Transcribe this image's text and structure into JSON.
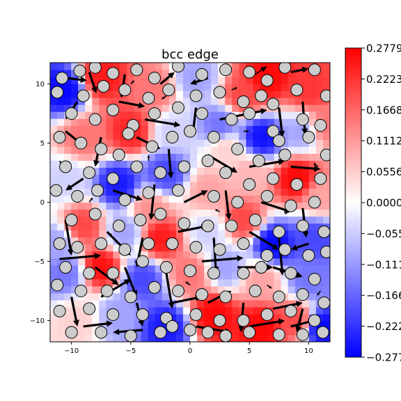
{
  "chart_data": {
    "type": "heatmap",
    "title": "bcc edge",
    "xlabel": "",
    "ylabel": "",
    "xlim": [
      -11.8,
      11.8
    ],
    "ylim": [
      -11.8,
      11.8
    ],
    "x_ticks": [
      -10,
      -5,
      0,
      5,
      10
    ],
    "x_tick_labels": [
      "−10",
      "−5",
      "0",
      "5",
      "10"
    ],
    "y_ticks": [
      -10,
      -5,
      0,
      5,
      10
    ],
    "y_tick_labels": [
      "−10",
      "−5",
      "0",
      "5",
      "10"
    ],
    "colormap": "bwr",
    "colorbar": {
      "vmin": -0.2779,
      "vmax": 0.2779,
      "ticks": [
        0.2779,
        0.2223,
        0.1668,
        0.1112,
        0.0556,
        0.0,
        -0.0556,
        -0.1112,
        -0.1668,
        -0.2223,
        -0.2779
      ],
      "tick_labels": [
        "0.2779",
        "0.2223",
        "0.1668",
        "0.1112",
        "0.0556",
        "0.0000",
        "−0.0556",
        "−0.1112",
        "−0.1668",
        "−0.2223",
        "−0.2779"
      ]
    },
    "color_low": "#0000ff",
    "color_mid": "#ffffff",
    "color_high": "#ff0000",
    "atom_fill": "#cccccc",
    "atom_stroke": "#000000",
    "arrow_color": "#000000",
    "grid": false,
    "field_samples": [
      {
        "x": -10.5,
        "y": 9.5,
        "v": -0.27
      },
      {
        "x": -7.5,
        "y": 10.5,
        "v": 0.25
      },
      {
        "x": -3.0,
        "y": 9.5,
        "v": 0.15
      },
      {
        "x": 0.5,
        "y": 10.5,
        "v": -0.1
      },
      {
        "x": 4.5,
        "y": 9.0,
        "v": 0.2
      },
      {
        "x": 6.5,
        "y": 10.5,
        "v": 0.27
      },
      {
        "x": 10.0,
        "y": 9.5,
        "v": 0.22
      },
      {
        "x": -9.0,
        "y": 5.5,
        "v": 0.15
      },
      {
        "x": -5.0,
        "y": 6.0,
        "v": 0.24
      },
      {
        "x": -1.5,
        "y": 6.0,
        "v": -0.05
      },
      {
        "x": 2.5,
        "y": 6.5,
        "v": -0.15
      },
      {
        "x": 6.0,
        "y": 5.5,
        "v": -0.26
      },
      {
        "x": 9.5,
        "y": 6.0,
        "v": -0.1
      },
      {
        "x": -10.5,
        "y": 2.0,
        "v": -0.05
      },
      {
        "x": -6.0,
        "y": 1.5,
        "v": -0.25
      },
      {
        "x": -2.0,
        "y": 2.5,
        "v": -0.2
      },
      {
        "x": 1.5,
        "y": 1.0,
        "v": 0.1
      },
      {
        "x": 5.0,
        "y": 2.5,
        "v": 0.08
      },
      {
        "x": 9.0,
        "y": 2.0,
        "v": 0.27
      },
      {
        "x": 11.0,
        "y": 0.5,
        "v": 0.1
      },
      {
        "x": -9.0,
        "y": -2.0,
        "v": 0.2
      },
      {
        "x": -5.5,
        "y": -2.5,
        "v": -0.1
      },
      {
        "x": -2.5,
        "y": -3.0,
        "v": 0.25
      },
      {
        "x": 1.5,
        "y": -2.5,
        "v": -0.05
      },
      {
        "x": 4.5,
        "y": -1.5,
        "v": 0.2
      },
      {
        "x": 7.0,
        "y": -3.5,
        "v": -0.27
      },
      {
        "x": 10.5,
        "y": -3.0,
        "v": -0.2
      },
      {
        "x": -10.5,
        "y": -6.0,
        "v": -0.15
      },
      {
        "x": -7.5,
        "y": -5.5,
        "v": 0.26
      },
      {
        "x": -4.0,
        "y": -6.5,
        "v": -0.2
      },
      {
        "x": 0.0,
        "y": -6.0,
        "v": 0.15
      },
      {
        "x": 3.0,
        "y": -5.5,
        "v": -0.1
      },
      {
        "x": 6.0,
        "y": -6.5,
        "v": 0.1
      },
      {
        "x": 10.0,
        "y": -6.5,
        "v": -0.15
      },
      {
        "x": -9.5,
        "y": -10.0,
        "v": 0.05
      },
      {
        "x": -6.0,
        "y": -9.5,
        "v": -0.1
      },
      {
        "x": -2.0,
        "y": -10.5,
        "v": -0.25
      },
      {
        "x": 2.0,
        "y": -9.5,
        "v": 0.27
      },
      {
        "x": 6.0,
        "y": -10.5,
        "v": 0.27
      },
      {
        "x": 9.0,
        "y": -10.0,
        "v": 0.2
      },
      {
        "x": 11.0,
        "y": -10.5,
        "v": -0.27
      },
      {
        "x": -11.2,
        "y": -3.5,
        "v": -0.1
      },
      {
        "x": 11.2,
        "y": 6.5,
        "v": 0.15
      },
      {
        "x": -3.5,
        "y": -0.5,
        "v": 0.12
      },
      {
        "x": 3.0,
        "y": 4.5,
        "v": 0.05
      }
    ],
    "atoms": [
      [
        -10.8,
        10.5
      ],
      [
        -9.3,
        11.1
      ],
      [
        -8.0,
        11.4
      ],
      [
        -6.5,
        10.9
      ],
      [
        -4.5,
        11.2
      ],
      [
        -3.0,
        10.5
      ],
      [
        -1.0,
        11.5
      ],
      [
        1.0,
        10.8
      ],
      [
        3.0,
        11.2
      ],
      [
        5.0,
        11.0
      ],
      [
        6.5,
        10.3
      ],
      [
        8.0,
        11.4
      ],
      [
        10.5,
        11.2
      ],
      [
        -11.2,
        9.3
      ],
      [
        -9.0,
        9.0
      ],
      [
        -7.3,
        9.8
      ],
      [
        -5.5,
        9.5
      ],
      [
        -3.5,
        8.8
      ],
      [
        -1.8,
        9.5
      ],
      [
        0.5,
        9.0
      ],
      [
        2.5,
        9.3
      ],
      [
        4.5,
        8.5
      ],
      [
        6.0,
        9.0
      ],
      [
        7.0,
        8.3
      ],
      [
        9.0,
        9.5
      ],
      [
        11.5,
        9.0
      ],
      [
        -10.0,
        7.5
      ],
      [
        -8.0,
        7.0
      ],
      [
        -6.5,
        7.8
      ],
      [
        -4.8,
        6.5
      ],
      [
        -3.0,
        7.5
      ],
      [
        -1.0,
        8.0
      ],
      [
        1.0,
        7.5
      ],
      [
        3.5,
        7.0
      ],
      [
        5.0,
        7.5
      ],
      [
        7.0,
        6.0
      ],
      [
        9.5,
        7.0
      ],
      [
        11.0,
        6.5
      ],
      [
        -11.0,
        5.5
      ],
      [
        -9.2,
        5.0
      ],
      [
        -7.5,
        4.5
      ],
      [
        -5.2,
        5.8
      ],
      [
        -3.2,
        4.7
      ],
      [
        -1.5,
        5.5
      ],
      [
        0.0,
        6.0
      ],
      [
        2.0,
        5.5
      ],
      [
        4.0,
        4.5
      ],
      [
        5.8,
        3.5
      ],
      [
        8.0,
        4.0
      ],
      [
        10.0,
        5.5
      ],
      [
        11.5,
        4.0
      ],
      [
        -10.5,
        3.0
      ],
      [
        -8.5,
        2.5
      ],
      [
        -6.5,
        2.0
      ],
      [
        -4.5,
        3.0
      ],
      [
        -2.5,
        2.5
      ],
      [
        -0.5,
        3.0
      ],
      [
        1.5,
        3.5
      ],
      [
        3.0,
        2.5
      ],
      [
        5.0,
        1.5
      ],
      [
        7.0,
        2.0
      ],
      [
        9.0,
        1.5
      ],
      [
        11.0,
        2.0
      ],
      [
        -11.3,
        1.0
      ],
      [
        -9.5,
        0.5
      ],
      [
        -7.8,
        1.0
      ],
      [
        -5.5,
        0.2
      ],
      [
        -3.5,
        0.8
      ],
      [
        -1.0,
        1.0
      ],
      [
        2.0,
        0.5
      ],
      [
        4.0,
        0.0
      ],
      [
        6.5,
        0.5
      ],
      [
        8.5,
        -0.3
      ],
      [
        10.5,
        0.0
      ],
      [
        -10.0,
        -1.5
      ],
      [
        -8.0,
        -1.0
      ],
      [
        -6.0,
        -2.0
      ],
      [
        -4.2,
        -1.5
      ],
      [
        -2.5,
        -1.0
      ],
      [
        -0.5,
        -1.8
      ],
      [
        1.5,
        -2.0
      ],
      [
        3.5,
        -2.0
      ],
      [
        5.5,
        -1.5
      ],
      [
        7.5,
        -2.5
      ],
      [
        9.5,
        -2.0
      ],
      [
        11.3,
        -2.5
      ],
      [
        -11.0,
        -3.5
      ],
      [
        -9.5,
        -3.8
      ],
      [
        -7.5,
        -3.5
      ],
      [
        -5.5,
        -4.0
      ],
      [
        -3.5,
        -3.5
      ],
      [
        -1.5,
        -3.5
      ],
      [
        0.5,
        -3.8
      ],
      [
        2.5,
        -4.0
      ],
      [
        4.5,
        -3.5
      ],
      [
        6.5,
        -4.5
      ],
      [
        8.0,
        -4.0
      ],
      [
        10.0,
        -4.5
      ],
      [
        11.5,
        -4.2
      ],
      [
        -10.5,
        -5.5
      ],
      [
        -8.5,
        -6.0
      ],
      [
        -6.5,
        -6.0
      ],
      [
        -4.0,
        -5.0
      ],
      [
        -2.0,
        -5.5
      ],
      [
        0.0,
        -5.8
      ],
      [
        2.0,
        -6.0
      ],
      [
        4.5,
        -6.0
      ],
      [
        6.0,
        -5.5
      ],
      [
        8.5,
        -6.0
      ],
      [
        10.5,
        -6.5
      ],
      [
        -11.2,
        -7.0
      ],
      [
        -9.2,
        -7.5
      ],
      [
        -7.0,
        -7.5
      ],
      [
        -5.0,
        -8.0
      ],
      [
        -3.0,
        -7.2
      ],
      [
        -1.0,
        -7.5
      ],
      [
        1.0,
        -7.8
      ],
      [
        3.0,
        -8.0
      ],
      [
        5.5,
        -7.5
      ],
      [
        7.5,
        -8.0
      ],
      [
        9.5,
        -7.8
      ],
      [
        11.3,
        -8.5
      ],
      [
        -11.0,
        -9.2
      ],
      [
        -8.5,
        -9.0
      ],
      [
        -6.5,
        -9.5
      ],
      [
        -4.0,
        -9.5
      ],
      [
        -2.0,
        -9.8
      ],
      [
        0.5,
        -9.5
      ],
      [
        2.5,
        -10.0
      ],
      [
        4.5,
        -10.0
      ],
      [
        6.5,
        -9.5
      ],
      [
        8.5,
        -9.2
      ],
      [
        10.5,
        -10.0
      ],
      [
        -10.0,
        -11.0
      ],
      [
        -7.5,
        -11.0
      ],
      [
        -5.0,
        -11.3
      ],
      [
        -2.5,
        -11.0
      ],
      [
        0.0,
        -10.8
      ],
      [
        3.0,
        -11.3
      ],
      [
        5.0,
        -11.0
      ],
      [
        7.5,
        -11.2
      ],
      [
        9.5,
        -11.2
      ],
      [
        11.2,
        -11.0
      ],
      [
        -1.5,
        -10.5
      ],
      [
        1.5,
        -11.0
      ],
      [
        -6.0,
        4.0
      ],
      [
        7.5,
        5.2
      ]
    ],
    "arrows": [
      {
        "x": -10.5,
        "y": 10.5,
        "dx": 1.8,
        "dy": -0.2
      },
      {
        "x": -8.5,
        "y": 11.0,
        "dx": 0.6,
        "dy": -1.8
      },
      {
        "x": -5.5,
        "y": 10.8,
        "dx": -0.3,
        "dy": -2.0
      },
      {
        "x": -2.5,
        "y": 10.0,
        "dx": 1.2,
        "dy": 1.0
      },
      {
        "x": 1.5,
        "y": 10.5,
        "dx": -1.5,
        "dy": -0.5
      },
      {
        "x": 5.5,
        "y": 10.8,
        "dx": 1.0,
        "dy": 0.7
      },
      {
        "x": 8.5,
        "y": 11.0,
        "dx": 1.5,
        "dy": 0.3
      },
      {
        "x": -9.5,
        "y": 8.5,
        "dx": -1.0,
        "dy": -1.5
      },
      {
        "x": -6.0,
        "y": 8.5,
        "dx": 2.2,
        "dy": -0.4
      },
      {
        "x": -3.8,
        "y": 7.0,
        "dx": 3.0,
        "dy": -0.5
      },
      {
        "x": 0.5,
        "y": 8.0,
        "dx": -0.3,
        "dy": -2.5
      },
      {
        "x": 2.5,
        "y": 7.0,
        "dx": 4.0,
        "dy": 0.8
      },
      {
        "x": 7.5,
        "y": 8.0,
        "dx": 0.3,
        "dy": -2.5
      },
      {
        "x": 9.5,
        "y": 8.5,
        "dx": 0.2,
        "dy": -2.8
      },
      {
        "x": -10.5,
        "y": 6.0,
        "dx": 1.5,
        "dy": -1.2
      },
      {
        "x": -7.5,
        "y": 5.5,
        "dx": -0.5,
        "dy": -2.5
      },
      {
        "x": -4.5,
        "y": 5.5,
        "dx": 2.0,
        "dy": -1.0
      },
      {
        "x": -1.8,
        "y": 4.5,
        "dx": 0.2,
        "dy": -2.5
      },
      {
        "x": 1.5,
        "y": 4.0,
        "dx": 2.5,
        "dy": -1.5
      },
      {
        "x": 5.0,
        "y": 3.0,
        "dx": 3.0,
        "dy": 0.5
      },
      {
        "x": 8.5,
        "y": 3.0,
        "dx": 2.5,
        "dy": -0.2
      },
      {
        "x": -9.0,
        "y": 2.0,
        "dx": -1.5,
        "dy": -1.0
      },
      {
        "x": -6.5,
        "y": 1.0,
        "dx": 2.5,
        "dy": -0.8
      },
      {
        "x": -3.0,
        "y": 1.5,
        "dx": -0.3,
        "dy": -3.0
      },
      {
        "x": -0.5,
        "y": 0.0,
        "dx": 2.0,
        "dy": 1.0
      },
      {
        "x": 3.0,
        "y": 1.0,
        "dx": 0.3,
        "dy": -2.5
      },
      {
        "x": 6.0,
        "y": 0.0,
        "dx": 2.5,
        "dy": -0.8
      },
      {
        "x": 9.5,
        "y": -0.5,
        "dx": 0.3,
        "dy": -2.5
      },
      {
        "x": -10.5,
        "y": -1.5,
        "dx": 0.5,
        "dy": -3.0
      },
      {
        "x": -7.0,
        "y": -2.5,
        "dx": 2.0,
        "dy": -2.0
      },
      {
        "x": -4.0,
        "y": -3.0,
        "dx": -0.5,
        "dy": -2.5
      },
      {
        "x": -1.0,
        "y": -2.5,
        "dx": 2.5,
        "dy": 0.5
      },
      {
        "x": 2.0,
        "y": -3.0,
        "dx": 0.2,
        "dy": -3.0
      },
      {
        "x": 5.0,
        "y": -2.5,
        "dx": 2.5,
        "dy": -1.5
      },
      {
        "x": 7.5,
        "y": -3.0,
        "dx": 0.3,
        "dy": -3.2
      },
      {
        "x": 10.0,
        "y": -3.5,
        "dx": -1.5,
        "dy": -0.5
      },
      {
        "x": -11.0,
        "y": -4.8,
        "dx": 3.5,
        "dy": 0.3
      },
      {
        "x": -8.0,
        "y": -5.5,
        "dx": 2.0,
        "dy": -1.5
      },
      {
        "x": -5.5,
        "y": -5.5,
        "dx": 1.0,
        "dy": -2.5
      },
      {
        "x": -2.0,
        "y": -6.0,
        "dx": 0.5,
        "dy": -3.0
      },
      {
        "x": 1.0,
        "y": -5.0,
        "dx": 3.5,
        "dy": 0.3
      },
      {
        "x": 4.0,
        "y": -5.5,
        "dx": 3.0,
        "dy": 0.0
      },
      {
        "x": 7.0,
        "y": -5.5,
        "dx": 2.5,
        "dy": -0.8
      },
      {
        "x": -10.0,
        "y": -8.0,
        "dx": 0.5,
        "dy": -2.5
      },
      {
        "x": -7.5,
        "y": -8.0,
        "dx": 2.5,
        "dy": 1.5
      },
      {
        "x": -4.5,
        "y": -8.5,
        "dx": 0.5,
        "dy": -2.0
      },
      {
        "x": -1.5,
        "y": -8.5,
        "dx": 2.5,
        "dy": 0.5
      },
      {
        "x": 1.5,
        "y": -8.5,
        "dx": 2.0,
        "dy": 1.0
      },
      {
        "x": 4.5,
        "y": -8.5,
        "dx": -0.2,
        "dy": -2.5
      },
      {
        "x": 7.0,
        "y": -9.0,
        "dx": 2.5,
        "dy": 0.5
      },
      {
        "x": 9.5,
        "y": -9.0,
        "dx": -0.5,
        "dy": -2.0
      },
      {
        "x": -9.0,
        "y": -10.5,
        "dx": 2.5,
        "dy": 0.3
      },
      {
        "x": -4.0,
        "y": -10.8,
        "dx": -2.5,
        "dy": -0.2
      },
      {
        "x": 0.5,
        "y": -10.5,
        "dx": 3.0,
        "dy": -0.5
      },
      {
        "x": 5.0,
        "y": -10.5,
        "dx": 3.0,
        "dy": 0.5
      },
      {
        "x": 8.5,
        "y": -10.5,
        "dx": 2.0,
        "dy": 0.5
      },
      {
        "x": -11.0,
        "y": 3.5,
        "dx": 0.3,
        "dy": -0.6
      },
      {
        "x": -2.0,
        "y": 9.0,
        "dx": -0.4,
        "dy": -0.3
      },
      {
        "x": 3.5,
        "y": 9.5,
        "dx": 0.5,
        "dy": 0.2
      },
      {
        "x": 10.8,
        "y": 3.0,
        "dx": -0.4,
        "dy": 0.3
      },
      {
        "x": -8.5,
        "y": 0.0,
        "dx": 0.3,
        "dy": 0.4
      },
      {
        "x": 0.0,
        "y": -7.0,
        "dx": -0.4,
        "dy": 0.3
      },
      {
        "x": 6.5,
        "y": -7.0,
        "dx": 0.4,
        "dy": -0.3
      },
      {
        "x": -6.5,
        "y": -3.0,
        "dx": -0.3,
        "dy": 0.4
      },
      {
        "x": 4.5,
        "y": 6.0,
        "dx": 0.5,
        "dy": 0.0
      },
      {
        "x": -3.5,
        "y": 3.5,
        "dx": 0.0,
        "dy": 0.5
      },
      {
        "x": 8.0,
        "y": -1.0,
        "dx": 0.4,
        "dy": 0.3
      },
      {
        "x": -5.0,
        "y": 10.0,
        "dx": 0.3,
        "dy": 0.3
      },
      {
        "x": 2.5,
        "y": -0.8,
        "dx": -0.4,
        "dy": 0.2
      },
      {
        "x": 11.0,
        "y": -7.5,
        "dx": -0.3,
        "dy": -0.4
      }
    ]
  }
}
